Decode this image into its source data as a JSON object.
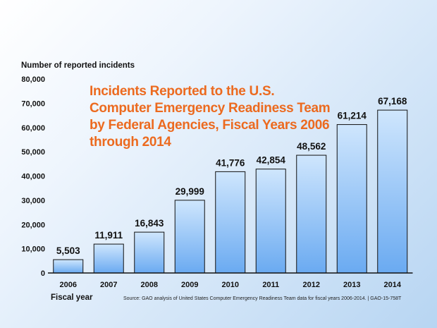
{
  "chart_data": {
    "type": "bar",
    "title": "Incidents Reported to the U.S. Computer Emergency Readiness Team by Federal Agencies, Fiscal Years 2006 through 2014",
    "ylabel": "Number of reported incidents",
    "xlabel": "Fiscal year",
    "categories": [
      "2006",
      "2007",
      "2008",
      "2009",
      "2010",
      "2011",
      "2012",
      "2013",
      "2014"
    ],
    "values": [
      5503,
      11911,
      16843,
      29999,
      41776,
      42854,
      48562,
      61214,
      67168
    ],
    "value_labels": [
      "5,503",
      "11,911",
      "16,843",
      "29,999",
      "41,776",
      "42,854",
      "48,562",
      "61,214",
      "67,168"
    ],
    "yticks": [
      0,
      10000,
      20000,
      30000,
      40000,
      50000,
      60000,
      70000,
      80000
    ],
    "ytick_labels": [
      "0",
      "10,000",
      "20,000",
      "30,000",
      "40,000",
      "50,000",
      "60,000",
      "70,000",
      "80,000"
    ],
    "ylim": [
      0,
      80000
    ],
    "grid": false,
    "source": "Source: GAO analysis of United States Computer Emergency Readiness Team data for fiscal years 2006-2014.  |  GAO-15-758T"
  },
  "colors": {
    "title": "#ec6a1f",
    "bar_top": "#cfe6fd",
    "bar_bottom": "#6aaaf1",
    "bar_stroke": "#111111",
    "axis": "#111111"
  }
}
